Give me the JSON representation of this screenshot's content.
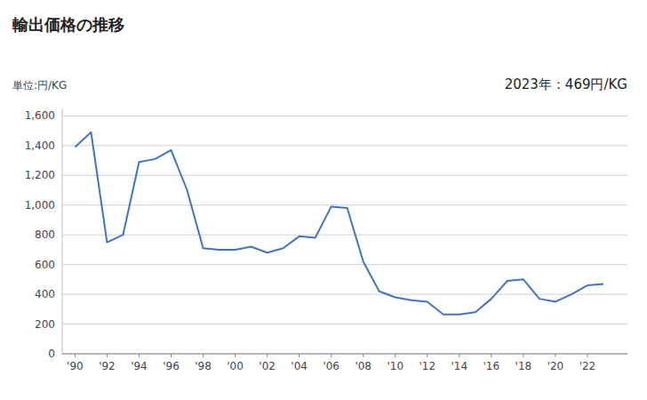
{
  "chart_data": {
    "type": "line",
    "title": "輸出価格の推移",
    "y_label": "単位:円/KG",
    "annotation": "2023年：469円/KG",
    "x": [
      1990,
      1991,
      1992,
      1993,
      1994,
      1995,
      1996,
      1997,
      1998,
      1999,
      2000,
      2001,
      2002,
      2003,
      2004,
      2005,
      2006,
      2007,
      2008,
      2009,
      2010,
      2011,
      2012,
      2013,
      2014,
      2015,
      2016,
      2017,
      2018,
      2019,
      2020,
      2021,
      2022,
      2023
    ],
    "values": [
      1390,
      1490,
      750,
      800,
      1290,
      1310,
      1370,
      1100,
      710,
      700,
      700,
      720,
      680,
      710,
      790,
      780,
      990,
      980,
      620,
      420,
      380,
      360,
      350,
      265,
      265,
      280,
      370,
      490,
      500,
      370,
      350,
      400,
      460,
      469
    ],
    "color": "#4472C4",
    "xlim": [
      1989.2,
      2024.5
    ],
    "xticks": [
      {
        "value": 1990,
        "label": "'90"
      },
      {
        "value": 1992,
        "label": "'92"
      },
      {
        "value": 1994,
        "label": "'94"
      },
      {
        "value": 1996,
        "label": "'96"
      },
      {
        "value": 1998,
        "label": "'98"
      },
      {
        "value": 2000,
        "label": "'00"
      },
      {
        "value": 2002,
        "label": "'02"
      },
      {
        "value": 2004,
        "label": "'04"
      },
      {
        "value": 2006,
        "label": "'06"
      },
      {
        "value": 2008,
        "label": "'08"
      },
      {
        "value": 2010,
        "label": "'10"
      },
      {
        "value": 2012,
        "label": "'12"
      },
      {
        "value": 2014,
        "label": "'14"
      },
      {
        "value": 2016,
        "label": "'16"
      },
      {
        "value": 2018,
        "label": "'18"
      },
      {
        "value": 2020,
        "label": "'20"
      },
      {
        "value": 2022,
        "label": "'22"
      }
    ],
    "ylim": [
      0,
      1650
    ],
    "yticks": [
      0,
      200,
      400,
      600,
      800,
      {
        "value": 1000,
        "label": "1,000"
      },
      {
        "value": 1200,
        "label": "1,200"
      },
      {
        "value": 1400,
        "label": "1,400"
      },
      {
        "value": 1600,
        "label": "1,600"
      }
    ],
    "grid": true
  }
}
